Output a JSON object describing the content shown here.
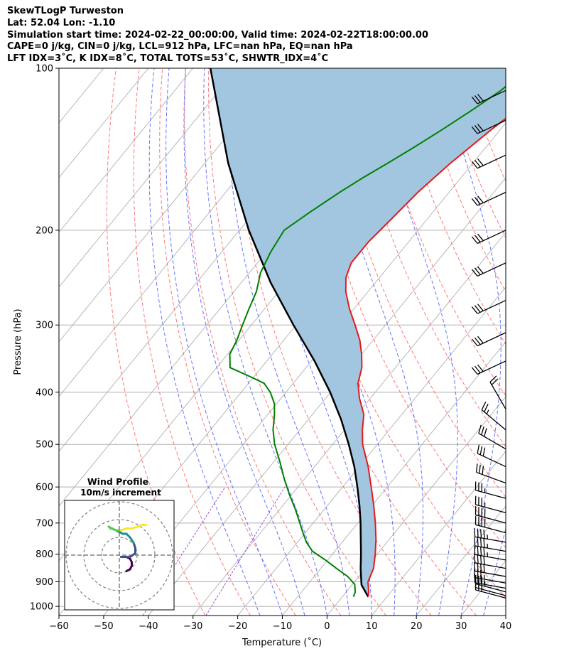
{
  "header_lines": [
    "SkewTLogP Turweston",
    "Lat: 52.04   Lon: -1.10",
    "Simulation start time: 2024-02-22_00:00:00, Valid time: 2024-02-22T18:00:00.00",
    "CAPE=0 j/kg, CIN=0 j/kg, LCL=912 hPa, LFC=nan hPa, EQ=nan hPa",
    "LFT IDX=3$^\\circ$C, K IDX=8$^\\circ$C, TOTAL TOTS=53$^\\circ$C, SHWTR_IDX=4$^\\circ$C"
  ],
  "header_display": [
    "SkewTLogP Turweston",
    "Lat: 52.04   Lon: -1.10",
    "Simulation start time: 2024-02-22_00:00:00, Valid time: 2024-02-22T18:00:00.00",
    "CAPE=0 j/kg, CIN=0 j/kg, LCL=912 hPa, LFC=nan hPa, EQ=nan hPa",
    "LFT IDX=3˚C, K IDX=8˚C, TOTAL TOTS=53˚C, SHWTR_IDX=4˚C"
  ],
  "chart_data": [
    {
      "type": "line",
      "subtype": "skew-T log-P diagram",
      "xlabel": "Temperature (˚C)",
      "ylabel": "Pressure (hPa)",
      "xlim": [
        -60,
        40
      ],
      "ylim": [
        1040,
        100
      ],
      "y_scale": "log",
      "x_ticks": [
        "−60",
        "−50",
        "−40",
        "−30",
        "−20",
        "−10",
        "0",
        "10",
        "20",
        "30",
        "40"
      ],
      "x_tick_values": [
        -60,
        -50,
        -40,
        -30,
        -20,
        -10,
        0,
        10,
        20,
        30,
        40
      ],
      "y_ticks": [
        "1000",
        "900",
        "800",
        "700",
        "600",
        "500",
        "400",
        "300",
        "200",
        "100"
      ],
      "y_tick_values": [
        1000,
        900,
        800,
        700,
        600,
        500,
        400,
        300,
        200,
        100
      ],
      "grid": true,
      "colors": {
        "temperature": "#e41a1c",
        "dewpoint": "#008000",
        "parcel": "#000000",
        "shading": "#a3c6e0",
        "dry_adiabat": "#ff6060",
        "moist_adiabat": "#4a5cff",
        "mixing_ratio": "#9d4dd6",
        "isotherm": "#b0b0b0"
      },
      "series": [
        {
          "key": "temperature",
          "pressure": [
            960,
            940,
            900,
            850,
            800,
            750,
            700,
            650,
            600,
            550,
            500,
            470,
            440,
            410,
            385,
            360,
            340,
            320,
            300,
            280,
            260,
            245,
            230,
            210,
            190,
            170,
            150,
            130,
            115,
            100
          ],
          "values": [
            5.8,
            5.0,
            3.0,
            1.8,
            -0.4,
            -3.0,
            -6.1,
            -9.6,
            -13.6,
            -18.0,
            -23.3,
            -26.0,
            -28.5,
            -32.5,
            -35.5,
            -37.5,
            -40.0,
            -43.0,
            -46.8,
            -51.0,
            -55.0,
            -57.5,
            -59.0,
            -59.0,
            -58.0,
            -57.0,
            -55.0,
            -52.0,
            -49.0,
            -46.0
          ]
        },
        {
          "key": "dewpoint",
          "pressure": [
            960,
            940,
            910,
            880,
            850,
            820,
            790,
            760,
            730,
            700,
            660,
            620,
            580,
            540,
            500,
            470,
            440,
            420,
            400,
            385,
            375,
            360,
            340,
            320,
            300,
            280,
            260,
            240,
            220,
            200,
            185,
            170,
            160,
            150,
            140,
            130,
            120,
            110,
            100
          ],
          "values": [
            2.5,
            2.0,
            0.5,
            -2.5,
            -6.5,
            -10.5,
            -15.0,
            -18.0,
            -20.5,
            -23.0,
            -26.5,
            -30.5,
            -34.5,
            -38.5,
            -43.0,
            -46.0,
            -48.5,
            -50.5,
            -53.5,
            -56.5,
            -60.5,
            -67.0,
            -69.5,
            -70.5,
            -72.0,
            -73.5,
            -75.0,
            -77.5,
            -79.0,
            -80.0,
            -77.5,
            -74.5,
            -72.0,
            -69.0,
            -66.0,
            -63.0,
            -60.0,
            -57.0,
            -55.0
          ]
        },
        {
          "key": "parcel",
          "pressure": [
            960,
            912,
            850,
            800,
            750,
            700,
            650,
            600,
            550,
            500,
            450,
            400,
            350,
            300,
            250,
            200,
            150,
            100
          ],
          "values": [
            5.8,
            2.1,
            -1.1,
            -3.6,
            -6.4,
            -9.4,
            -12.8,
            -16.7,
            -21.1,
            -26.4,
            -32.6,
            -40.1,
            -49.3,
            -60.6,
            -73.5,
            -87.9,
            -104.8,
            -126.1
          ]
        }
      ],
      "wind_barbs": {
        "pressure": [
          965,
          955,
          940,
          925,
          905,
          880,
          850,
          820,
          790,
          760,
          730,
          700,
          670,
          630,
          590,
          550,
          510,
          470,
          430,
          350,
          310,
          270,
          230,
          200,
          170,
          145,
          125,
          110
        ],
        "speed_kt": [
          30,
          30,
          35,
          35,
          35,
          40,
          40,
          45,
          45,
          45,
          40,
          40,
          35,
          35,
          30,
          30,
          30,
          25,
          20,
          30,
          30,
          30,
          30,
          30,
          30,
          30,
          30,
          30
        ],
        "direction_deg": [
          285,
          285,
          285,
          280,
          280,
          280,
          280,
          280,
          280,
          280,
          285,
          285,
          285,
          285,
          290,
          295,
          300,
          310,
          330,
          245,
          245,
          245,
          245,
          245,
          245,
          245,
          245,
          245
        ]
      }
    },
    {
      "type": "line",
      "subtype": "hodograph",
      "title": "Wind Profile",
      "subtitle": "10m/s increment",
      "rings_ms": [
        10,
        20,
        30
      ],
      "u_ms": [
        4,
        6,
        7,
        7,
        6,
        4,
        1,
        2,
        6,
        9,
        9,
        8,
        6,
        4,
        2,
        0,
        -2,
        -4,
        -6,
        -5,
        -2,
        1,
        4,
        7,
        10,
        13,
        15
      ],
      "v_ms": [
        -9,
        -8,
        -6,
        -4,
        -2,
        -1,
        -1,
        -1,
        -1,
        1,
        4,
        7,
        10,
        12,
        12,
        13,
        14,
        15,
        16,
        15,
        14,
        14,
        15,
        15,
        16,
        17,
        17
      ],
      "colormap": [
        "#440154",
        "#3b528b",
        "#21918c",
        "#5ec962",
        "#fde725"
      ]
    }
  ]
}
